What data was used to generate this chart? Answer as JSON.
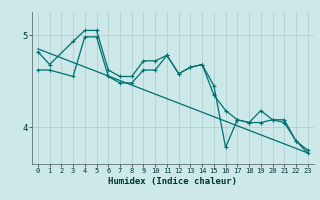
{
  "xlabel": "Humidex (Indice chaleur)",
  "bg_color": "#cce8e8",
  "grid_color": "#b0d0d0",
  "line_color": "#007070",
  "xlim": [
    -0.5,
    23.5
  ],
  "ylim": [
    3.6,
    5.25
  ],
  "yticks": [
    4,
    5
  ],
  "xticks": [
    0,
    1,
    2,
    3,
    4,
    5,
    6,
    7,
    8,
    9,
    10,
    11,
    12,
    13,
    14,
    15,
    16,
    17,
    18,
    19,
    20,
    21,
    22,
    23
  ],
  "line1_x": [
    0,
    1,
    3,
    4,
    5,
    6,
    7,
    8,
    9,
    10,
    11,
    12,
    13,
    14,
    15,
    16,
    17,
    18,
    19,
    20,
    21,
    22,
    23
  ],
  "line1_y": [
    4.82,
    4.68,
    4.93,
    5.05,
    5.05,
    4.62,
    4.55,
    4.55,
    4.72,
    4.72,
    4.78,
    4.58,
    4.65,
    4.68,
    4.35,
    4.18,
    4.08,
    4.05,
    4.18,
    4.08,
    4.08,
    3.85,
    3.75
  ],
  "line2_x": [
    0,
    1,
    3,
    4,
    5,
    6,
    7,
    8,
    9,
    10,
    11,
    12,
    13,
    14,
    15,
    16,
    17,
    18,
    19,
    20,
    21,
    22,
    23
  ],
  "line2_y": [
    4.62,
    4.62,
    4.55,
    4.98,
    4.98,
    4.55,
    4.48,
    4.48,
    4.62,
    4.62,
    4.78,
    4.58,
    4.65,
    4.68,
    4.45,
    3.78,
    4.08,
    4.05,
    4.05,
    4.08,
    4.05,
    3.85,
    3.72
  ],
  "line3_x": [
    0,
    23
  ],
  "line3_y": [
    4.85,
    3.72
  ],
  "marker_size": 3,
  "linewidth": 0.9
}
